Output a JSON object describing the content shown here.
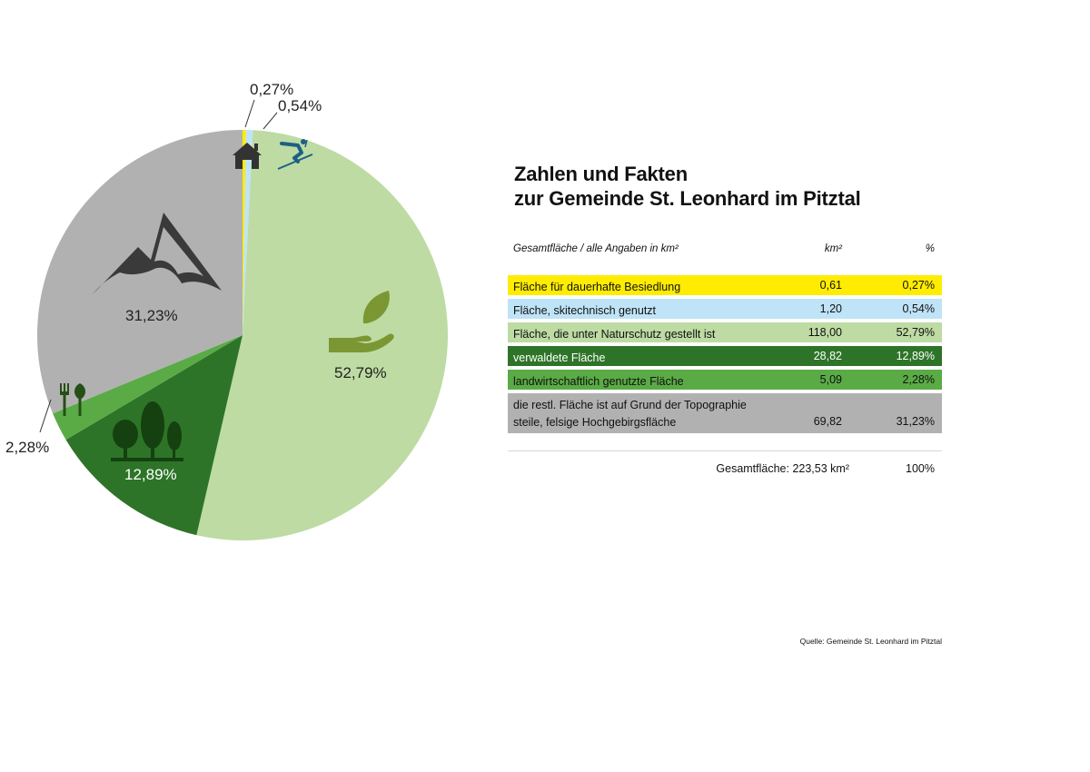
{
  "title_line1": "Zahlen und Fakten",
  "title_line2": "zur Gemeinde St. Leonhard im Pitztal",
  "table": {
    "header_label": "Gesamtfläche / alle Angaben in km²",
    "header_km": "km²",
    "header_pct": "%",
    "total_label": "Gesamtfläche: 223,53 km²",
    "total_pct": "100%"
  },
  "source": "Quelle: Gemeinde St. Leonhard im Pitztal",
  "chart_data": {
    "type": "pie",
    "start": "12 o'clock, clockwise",
    "slices": [
      {
        "label": "Fläche für dauerhafte Besiedlung",
        "km2": "0,61",
        "pct_label": "0,27%",
        "value": 0.27,
        "color": "#ffec00",
        "icon": "house-icon",
        "dark": false
      },
      {
        "label": "Fläche, skitechnisch genutzt",
        "km2": "1,20",
        "pct_label": "0,54%",
        "value": 0.54,
        "color": "#bfe3f7",
        "icon": "skier-icon",
        "dark": false
      },
      {
        "label": "Fläche, die unter Naturschutz gestellt ist",
        "km2": "118,00",
        "pct_label": "52,79%",
        "value": 52.79,
        "color": "#bddba3",
        "icon": "hand-leaf-icon",
        "dark": false
      },
      {
        "label": "verwaldete Fläche",
        "km2": "28,82",
        "pct_label": "12,89%",
        "value": 12.89,
        "color": "#2e7428",
        "icon": "trees-icon",
        "dark": true
      },
      {
        "label": "landwirtschaftlich genutzte Fläche",
        "km2": "5,09",
        "pct_label": "2,28%",
        "value": 2.28,
        "color": "#5aab46",
        "icon": "garden-tools-icon",
        "dark": false
      },
      {
        "label": "die restl. Fläche ist auf Grund der Topographie steile, felsige Hochgebirgsfläche",
        "label_line1": "die restl. Fläche ist auf Grund der Topographie",
        "label_line2": "steile, felsige Hochgebirgsfläche",
        "km2": "69,82",
        "pct_label": "31,23%",
        "value": 31.23,
        "color": "#b1b1b1",
        "icon": "mountain-icon",
        "dark": false
      }
    ]
  }
}
